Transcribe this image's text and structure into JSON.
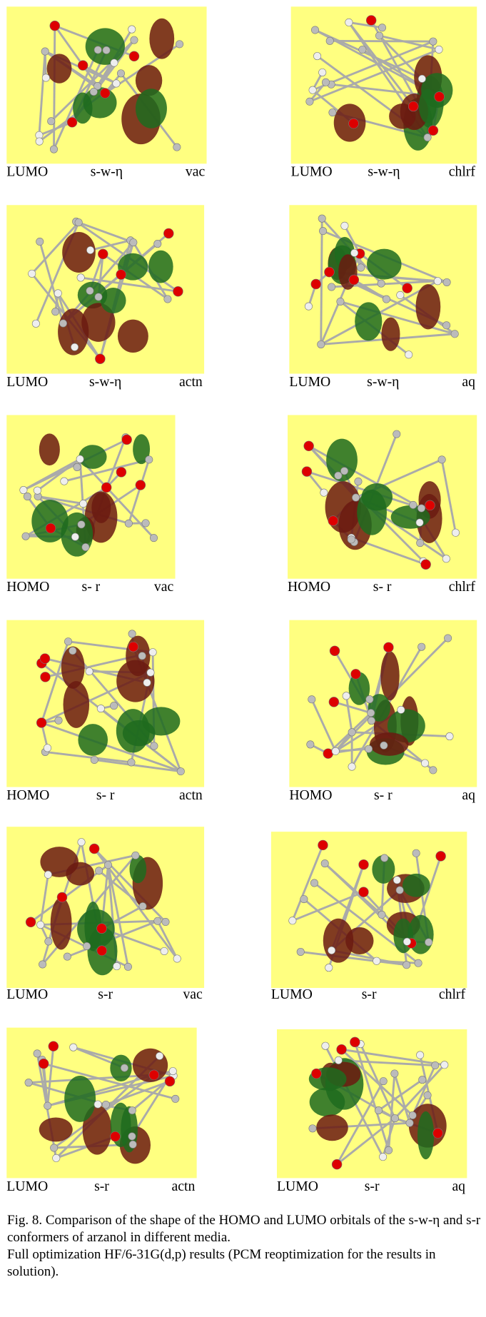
{
  "panels": [
    {
      "orbital": "LUMO",
      "conformer": "s-w-η",
      "medium": "vac"
    },
    {
      "orbital": "LUMO",
      "conformer": "s-w-η",
      "medium": "chlrf"
    },
    {
      "orbital": "LUMO",
      "conformer": "s-w-η",
      "medium": "actn"
    },
    {
      "orbital": "LUMO",
      "conformer": "s-w-η",
      "medium": "aq"
    },
    {
      "orbital": "HOMO",
      "conformer": "s- r",
      "medium": "vac"
    },
    {
      "orbital": "HOMO",
      "conformer": "s- r",
      "medium": "chlrf"
    },
    {
      "orbital": "HOMO",
      "conformer": "s- r",
      "medium": "actn"
    },
    {
      "orbital": "HOMO",
      "conformer": "s- r",
      "medium": "aq"
    },
    {
      "orbital": "LUMO",
      "conformer": "s-r",
      "medium": "vac"
    },
    {
      "orbital": "LUMO",
      "conformer": "s-r",
      "medium": "chlrf"
    },
    {
      "orbital": "LUMO",
      "conformer": "s-r",
      "medium": "actn"
    },
    {
      "orbital": "LUMO",
      "conformer": "s-r",
      "medium": "aq"
    }
  ],
  "caption": {
    "line1": "Fig. 8. Comparison of the shape of the HOMO and LUMO orbitals of the s-w-η and s-r conformers of arzanol in different media.",
    "line2": "Full optimization HF/6-31G(d,p) results (PCM reoptimization for the results in solution)."
  }
}
